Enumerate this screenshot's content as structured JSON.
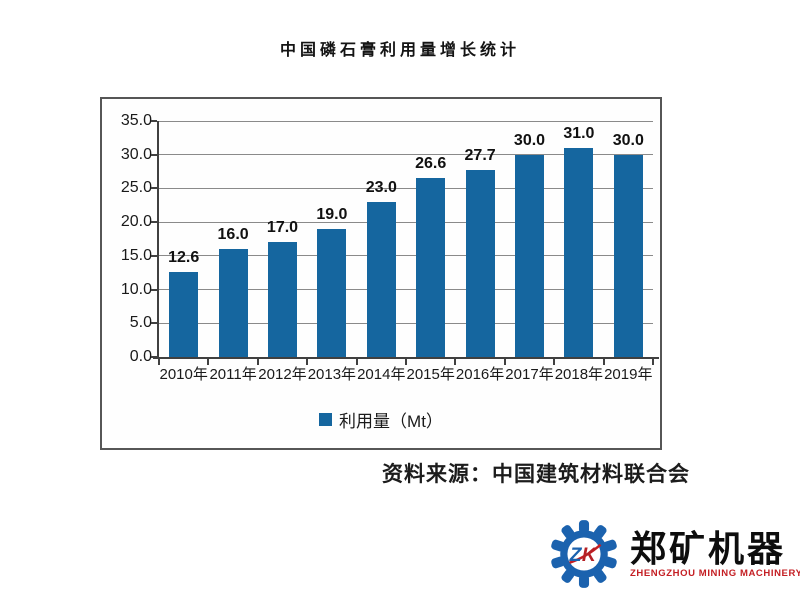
{
  "page": {
    "title": "中国磷石膏利用量增长统计",
    "source_note": "资料来源：中国建筑材料联合会"
  },
  "chart_data": {
    "type": "bar",
    "title": "中国磷石膏利用量增长统计",
    "categories": [
      "2010年",
      "2011年",
      "2012年",
      "2013年",
      "2014年",
      "2015年",
      "2016年",
      "2017年",
      "2018年",
      "2019年"
    ],
    "values": [
      12.6,
      16.0,
      17.0,
      19.0,
      23.0,
      26.6,
      27.7,
      30.0,
      31.0,
      30.0
    ],
    "value_labels": [
      "12.6",
      "16.0",
      "17.0",
      "19.0",
      "23.0",
      "26.6",
      "27.7",
      "30.0",
      "31.0",
      "30.0"
    ],
    "legend": "利用量（Mt）",
    "legend_position": "bottom",
    "xlabel": "",
    "ylabel": "",
    "ylim": [
      0,
      35
    ],
    "yticks": [
      {
        "value": 0,
        "label": "0.0"
      },
      {
        "value": 5,
        "label": "5.0"
      },
      {
        "value": 10,
        "label": "10.0"
      },
      {
        "value": 15,
        "label": "15.0"
      },
      {
        "value": 20,
        "label": "20.0"
      },
      {
        "value": 25,
        "label": "25.0"
      },
      {
        "value": 30,
        "label": "30.0"
      },
      {
        "value": 35,
        "label": "35.0"
      }
    ],
    "grid": true,
    "bar_color": "#15669f"
  },
  "logo": {
    "icon": "gear-icon",
    "monogram": "ZK",
    "name": "郑矿机器",
    "subtitle": "ZHENGZHOU MINING MACHINERY"
  },
  "colors": {
    "bar": "#15669f",
    "axis": "#404040",
    "grid": "#8a8a8a",
    "frame_border": "#565656",
    "logo_blue": "#1b62ae",
    "logo_red": "#c41e23",
    "title_text": "#141414"
  }
}
